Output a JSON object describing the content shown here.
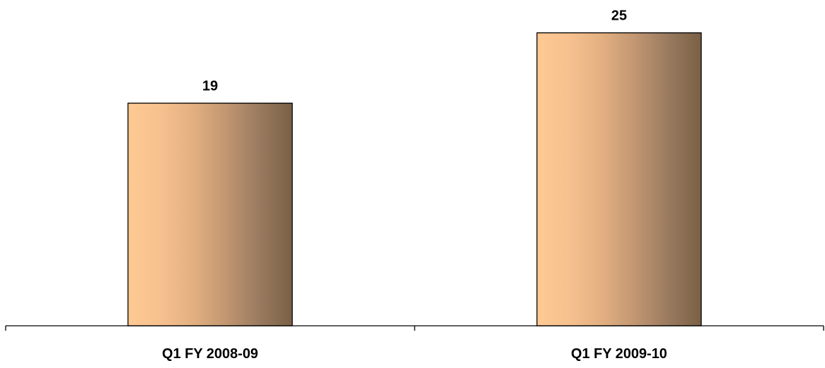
{
  "chart_data": {
    "type": "bar",
    "categories": [
      "Q1 FY 2008-09",
      "Q1 FY 2009-10"
    ],
    "values": [
      19,
      25
    ],
    "data_labels": [
      "19",
      "25"
    ],
    "title": "",
    "xlabel": "",
    "ylabel": "",
    "ylim": [
      0,
      27.2
    ],
    "grid": false,
    "legend": "none",
    "y_axis_visible": false
  },
  "colors": {
    "bar_gradient": [
      "#FFC993",
      "#F6C18E",
      "#E2AF81",
      "#C19671",
      "#997A5F",
      "#7A6045"
    ],
    "bar_border": "#000000",
    "axis": "#000000",
    "text": "#000000"
  }
}
